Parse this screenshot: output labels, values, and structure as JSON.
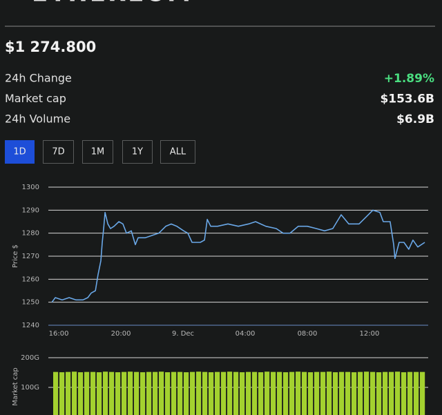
{
  "header": {
    "title": "ETHEREUM",
    "price": "$1 274.800"
  },
  "stats": [
    {
      "label": "24h Change",
      "value": "+1.89%"
    },
    {
      "label": "Market cap",
      "value": "$153.6B"
    },
    {
      "label": "24h Volume",
      "value": "$6.9B"
    }
  ],
  "ranges": [
    "1D",
    "7D",
    "1M",
    "1Y",
    "ALL"
  ],
  "chart_data": [
    {
      "type": "line",
      "y_label": "Price $",
      "color": "#6aa8e8",
      "grid": true,
      "x": [
        15.56,
        15.78,
        16.22,
        16.67,
        17.11,
        17.56,
        17.87,
        18.09,
        18.36,
        18.53,
        18.71,
        18.8,
        18.89,
        18.98,
        19.16,
        19.33,
        19.56,
        19.87,
        20.13,
        20.36,
        20.67,
        20.93,
        21.11,
        21.56,
        22,
        22.44,
        22.89,
        23.24,
        23.6,
        24.04,
        24.31,
        24.58,
        25.11,
        25.38,
        25.56,
        25.78,
        26.22,
        26.89,
        27.56,
        28.22,
        28.67,
        29.33,
        30,
        30.44,
        30.89,
        31.42,
        32,
        32.58,
        33.11,
        33.64,
        34.18,
        34.67,
        35.33,
        35.78,
        36.22,
        36.67,
        36.89,
        37.33,
        37.56,
        37.64,
        37.91,
        38.22,
        38.53,
        38.8,
        39.11,
        39.56
      ],
      "values": [
        1250,
        1252,
        1251,
        1252,
        1251,
        1251,
        1252,
        1254,
        1255,
        1262,
        1268,
        1276,
        1282,
        1289,
        1284,
        1282,
        1283,
        1285,
        1284,
        1280,
        1281,
        1275,
        1278,
        1278,
        1279,
        1280,
        1283,
        1284,
        1283,
        1281,
        1280,
        1276,
        1276,
        1277,
        1286,
        1283,
        1283,
        1284,
        1283,
        1284,
        1285,
        1283,
        1282,
        1280,
        1280,
        1283,
        1283,
        1282,
        1281,
        1282,
        1288,
        1284,
        1284,
        1287,
        1290,
        1289,
        1285,
        1285,
        1275,
        1269,
        1276,
        1276,
        1273,
        1277,
        1274,
        1276
      ],
      "xlim": [
        15.33,
        39.78
      ],
      "ylim": [
        1240,
        1300
      ],
      "yticks": [
        1240,
        1250,
        1260,
        1270,
        1280,
        1290,
        1300
      ],
      "xticks": [
        {
          "value": 16,
          "label": "16:00"
        },
        {
          "value": 20,
          "label": "20:00"
        },
        {
          "value": 24,
          "label": "9. Dec"
        },
        {
          "value": 28,
          "label": "04:00"
        },
        {
          "value": 32,
          "label": "08:00"
        },
        {
          "value": 36,
          "label": "12:00"
        }
      ]
    },
    {
      "type": "bar",
      "y_label": "Market cap",
      "color": "#a3d12f",
      "grid": true,
      "values": [
        152,
        151,
        152,
        153,
        151,
        152,
        152,
        151,
        153,
        152,
        151,
        152,
        153,
        152,
        151,
        152,
        152,
        153,
        151,
        152,
        152,
        151,
        152,
        153,
        152,
        151,
        152,
        152,
        153,
        152,
        151,
        152,
        152,
        151,
        153,
        152,
        152,
        151,
        152,
        153,
        152,
        151,
        152,
        152,
        153,
        151,
        152,
        152,
        151,
        152,
        153,
        152,
        151,
        152,
        152,
        153,
        151,
        152,
        152,
        152
      ],
      "ylim": [
        0,
        200
      ],
      "yticks": [
        {
          "value": 100,
          "label": "100G"
        },
        {
          "value": 200,
          "label": "200G"
        }
      ]
    }
  ]
}
